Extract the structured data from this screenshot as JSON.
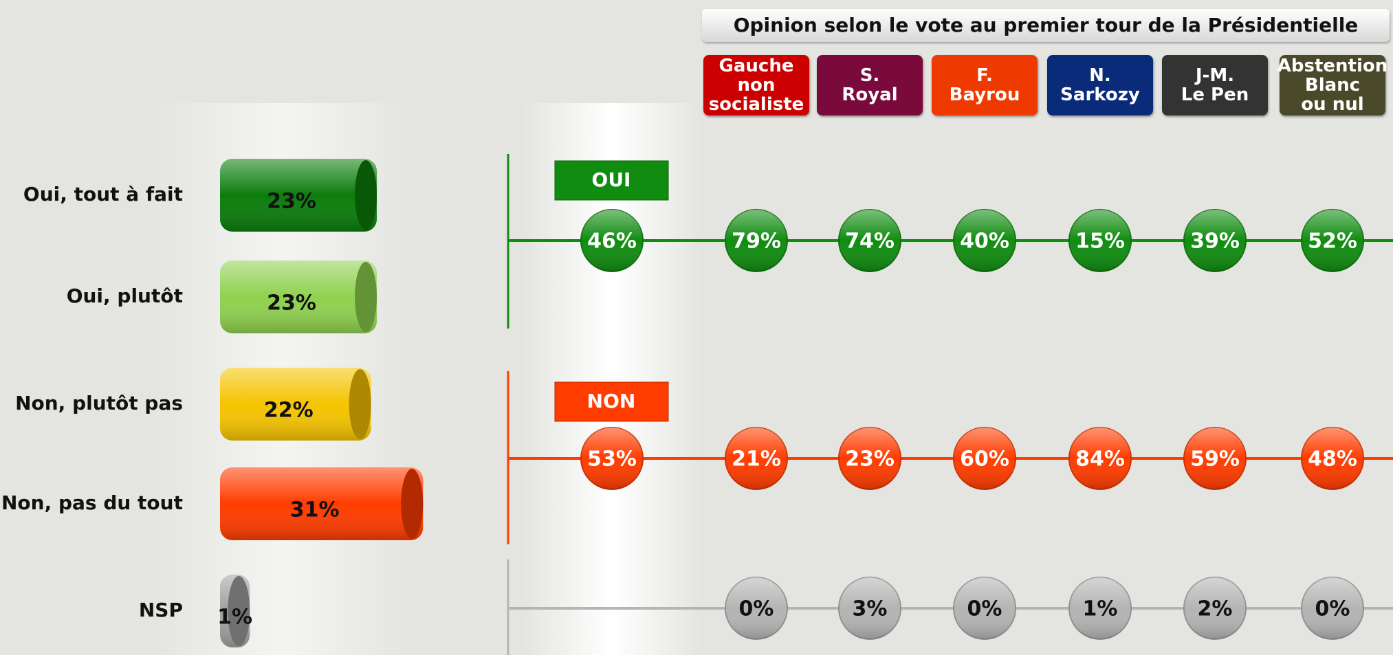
{
  "chart_data": [
    {
      "type": "hbar",
      "categories": [
        "Oui, tout à fait",
        "Oui, plutôt",
        "Non, plutôt pas",
        "Non, pas du tout",
        "NSP"
      ],
      "values": [
        23,
        23,
        22,
        31,
        1
      ],
      "value_labels": [
        "23%",
        "23%",
        "22%",
        "31%",
        "1%"
      ],
      "colors": [
        "#0b7d0b",
        "#8fd14f",
        "#f5c400",
        "#ff3c00",
        "#a0a0a0"
      ]
    },
    {
      "type": "dot-matrix",
      "title": "Opinion selon le vote au premier tour de la Présidentielle",
      "categories": [
        null,
        "Gauche\nnon\nsocialiste",
        "S.\nRoyal",
        "F.\nBayrou",
        "N.\nSarkozy",
        "J-M.\nLe Pen",
        "Abstention\nBlanc\nou nul"
      ],
      "header_colors": [
        null,
        "#cc0000",
        "#7a0a3c",
        "#ee3a00",
        "#0a2a7a",
        "#333333",
        "#4a4a2a"
      ],
      "series": [
        {
          "name": "OUI",
          "color": "#108c10",
          "values": [
            46,
            79,
            74,
            40,
            15,
            39,
            52
          ],
          "value_labels": [
            "46%",
            "79%",
            "74%",
            "40%",
            "15%",
            "39%",
            "52%"
          ]
        },
        {
          "name": "NON",
          "color": "#ff3c00",
          "values": [
            53,
            21,
            23,
            60,
            84,
            59,
            48
          ],
          "value_labels": [
            "53%",
            "21%",
            "23%",
            "60%",
            "84%",
            "59%",
            "48%"
          ]
        },
        {
          "name": null,
          "color": "#b4b4b4",
          "values": [
            null,
            0,
            3,
            0,
            1,
            2,
            0
          ],
          "value_labels": [
            null,
            "0%",
            "3%",
            "0%",
            "1%",
            "2%",
            "0%"
          ]
        }
      ]
    }
  ]
}
